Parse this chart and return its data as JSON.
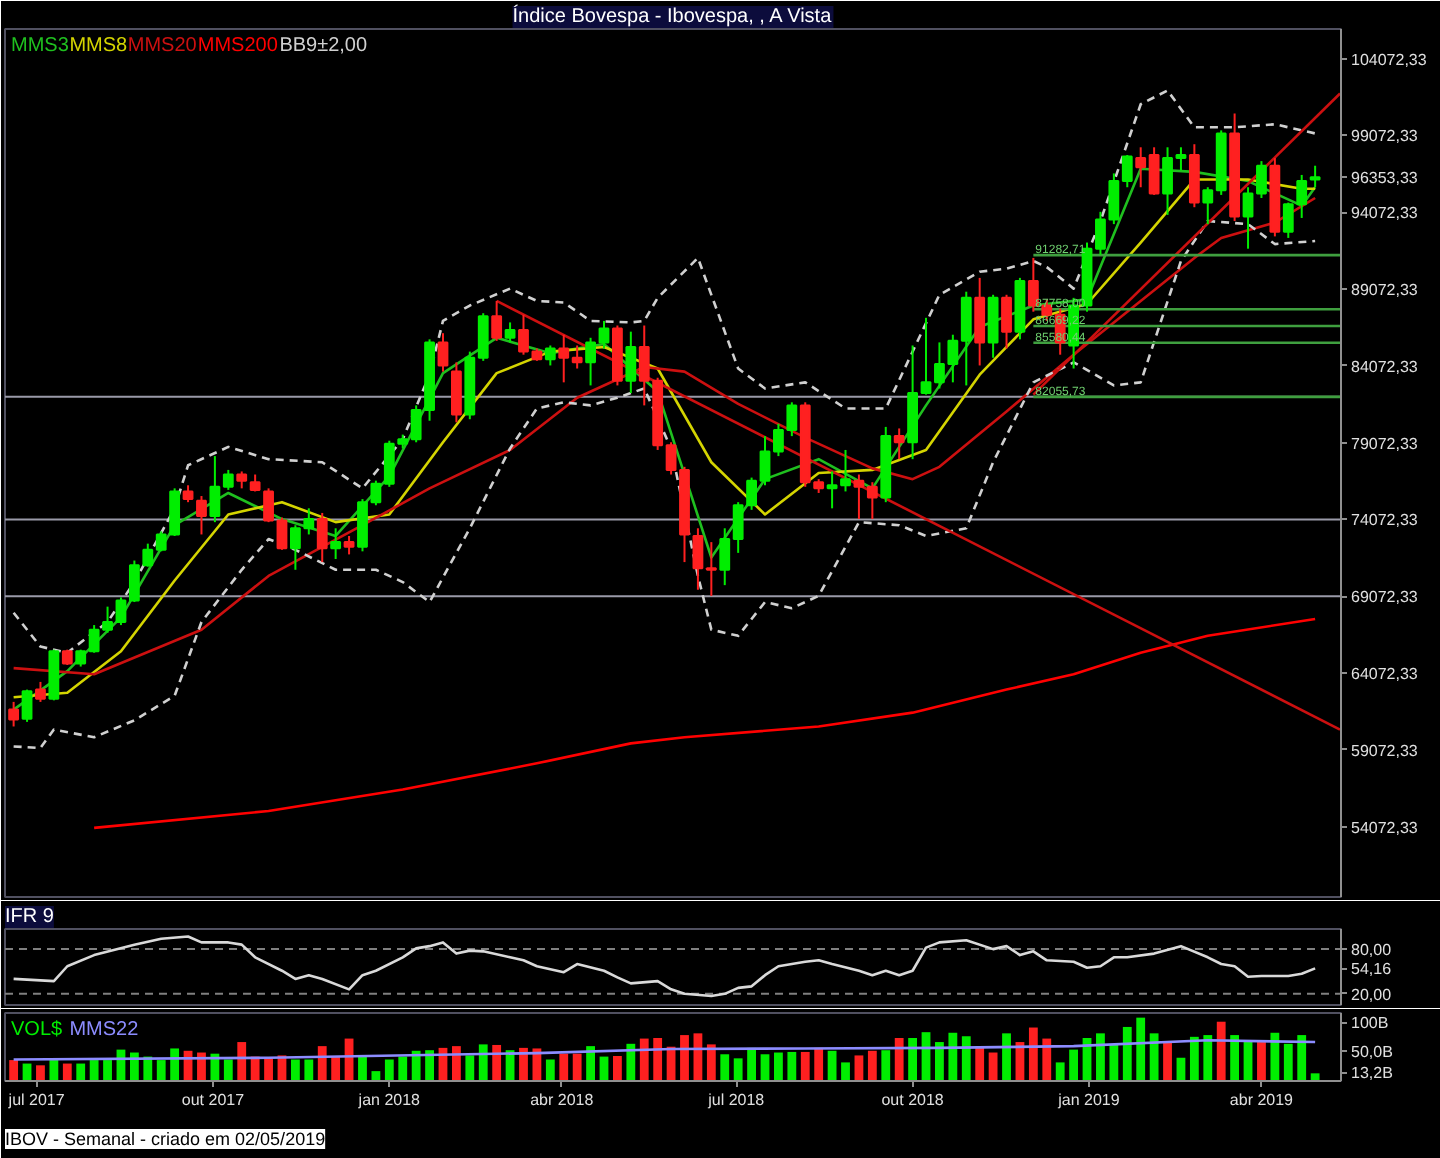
{
  "chart_data": [
    {
      "type": "candlestick",
      "title": "Índice Bovespa - Ibovespa, , A Vista",
      "legend": "top left",
      "tick_labels": "y",
      "xlim": [
        "2017-06-14T12:00",
        "2019-05-12T12:00"
      ],
      "ylim": [
        49500,
        106000
      ],
      "yticks": [
        {
          "value": 104072.33,
          "label": "104072,33"
        },
        {
          "value": 99072.33,
          "label": "99072,33"
        },
        {
          "value": 96353.33,
          "label": "96353,33"
        },
        {
          "value": 94072.33,
          "label": "94072,33"
        },
        {
          "value": 89072.33,
          "label": "89072,33"
        },
        {
          "value": 84072.33,
          "label": "84072,33"
        },
        {
          "value": 79072.33,
          "label": "79072,33"
        },
        {
          "value": 74072.33,
          "label": "74072,33"
        },
        {
          "value": 69072.33,
          "label": "69072,33"
        },
        {
          "value": 64072.33,
          "label": "64072,33"
        },
        {
          "value": 59072.33,
          "label": "59072,33"
        },
        {
          "value": 54072.33,
          "label": "54072,33"
        }
      ],
      "x": [
        "2017-06-19",
        "2017-06-26",
        "2017-07-03",
        "2017-07-10",
        "2017-07-17",
        "2017-07-24",
        "2017-07-31",
        "2017-08-07",
        "2017-08-14",
        "2017-08-21",
        "2017-08-28",
        "2017-09-04",
        "2017-09-11",
        "2017-09-18",
        "2017-09-25",
        "2017-10-02",
        "2017-10-09",
        "2017-10-16",
        "2017-10-23",
        "2017-10-30",
        "2017-11-06",
        "2017-11-13",
        "2017-11-20",
        "2017-11-27",
        "2017-12-04",
        "2017-12-11",
        "2017-12-18",
        "2017-12-25",
        "2018-01-01",
        "2018-01-08",
        "2018-01-15",
        "2018-01-22",
        "2018-01-29",
        "2018-02-05",
        "2018-02-12",
        "2018-02-19",
        "2018-02-26",
        "2018-03-05",
        "2018-03-12",
        "2018-03-19",
        "2018-03-26",
        "2018-04-02",
        "2018-04-09",
        "2018-04-16",
        "2018-04-23",
        "2018-04-30",
        "2018-05-07",
        "2018-05-14",
        "2018-05-21",
        "2018-05-28",
        "2018-06-04",
        "2018-06-11",
        "2018-06-18",
        "2018-06-25",
        "2018-07-02",
        "2018-07-09",
        "2018-07-16",
        "2018-07-23",
        "2018-07-30",
        "2018-08-06",
        "2018-08-13",
        "2018-08-20",
        "2018-08-27",
        "2018-09-03",
        "2018-09-10",
        "2018-09-17",
        "2018-09-24",
        "2018-10-01",
        "2018-10-08",
        "2018-10-15",
        "2018-10-22",
        "2018-10-29",
        "2018-11-05",
        "2018-11-12",
        "2018-11-19",
        "2018-11-26",
        "2018-12-03",
        "2018-12-10",
        "2018-12-17",
        "2018-12-24",
        "2018-12-31",
        "2019-01-07",
        "2019-01-14",
        "2019-01-21",
        "2019-01-28",
        "2019-02-04",
        "2019-02-11",
        "2019-02-18",
        "2019-02-25",
        "2019-03-04",
        "2019-03-11",
        "2019-03-18",
        "2019-03-25",
        "2019-04-01",
        "2019-04-08",
        "2019-04-15",
        "2019-04-22",
        "2019-04-29"
      ],
      "ohlc": [
        [
          61700,
          62200,
          60600,
          61050
        ],
        [
          61100,
          63000,
          60900,
          62900
        ],
        [
          63000,
          63500,
          62200,
          62400
        ],
        [
          62400,
          65600,
          62300,
          65500
        ],
        [
          65500,
          65600,
          64600,
          64700
        ],
        [
          64700,
          65600,
          64500,
          65500
        ],
        [
          65500,
          67200,
          65400,
          66900
        ],
        [
          66900,
          68400,
          66700,
          67400
        ],
        [
          67400,
          69000,
          67200,
          68800
        ],
        [
          68800,
          71400,
          68700,
          71100
        ],
        [
          71100,
          72500,
          71000,
          72100
        ],
        [
          72100,
          73300,
          72000,
          73100
        ],
        [
          73100,
          76100,
          73000,
          75900
        ],
        [
          75900,
          76300,
          75200,
          75400
        ],
        [
          75300,
          75600,
          73100,
          74300
        ],
        [
          74300,
          78200,
          73900,
          76200
        ],
        [
          76200,
          77300,
          76000,
          77000
        ],
        [
          77000,
          77200,
          76100,
          76600
        ],
        [
          76500,
          77000,
          75900,
          76000
        ],
        [
          75900,
          76100,
          73900,
          74000
        ],
        [
          74000,
          74200,
          72100,
          72200
        ],
        [
          72200,
          73700,
          70800,
          73500
        ],
        [
          73500,
          74800,
          73100,
          74100
        ],
        [
          74100,
          74500,
          71300,
          72200
        ],
        [
          72200,
          73500,
          71500,
          72600
        ],
        [
          72600,
          73000,
          71800,
          72300
        ],
        [
          72300,
          75400,
          72000,
          75200
        ],
        [
          75200,
          76600,
          75000,
          76400
        ],
        [
          76400,
          79200,
          76200,
          79000
        ],
        [
          79000,
          79600,
          78700,
          79300
        ],
        [
          79300,
          81500,
          79100,
          81200
        ],
        [
          81200,
          85800,
          80500,
          85600
        ],
        [
          85600,
          86200,
          83700,
          84100
        ],
        [
          83700,
          84300,
          80400,
          80900
        ],
        [
          80900,
          85000,
          80600,
          84600
        ],
        [
          84600,
          87500,
          84400,
          87300
        ],
        [
          87300,
          88300,
          85700,
          85900
        ],
        [
          85900,
          86900,
          85600,
          86400
        ],
        [
          86400,
          87400,
          84800,
          85000
        ],
        [
          85000,
          85200,
          84400,
          84500
        ],
        [
          84500,
          85400,
          84100,
          85200
        ],
        [
          85200,
          86100,
          83000,
          84600
        ],
        [
          84600,
          85400,
          83900,
          84300
        ],
        [
          84300,
          85900,
          82800,
          85600
        ],
        [
          85600,
          87000,
          85200,
          86500
        ],
        [
          86500,
          86700,
          82800,
          83100
        ],
        [
          83100,
          86300,
          82300,
          85300
        ],
        [
          85300,
          86700,
          81500,
          83100
        ],
        [
          83100,
          83300,
          78600,
          78900
        ],
        [
          78900,
          79100,
          77000,
          77300
        ],
        [
          77300,
          77500,
          71300,
          73100
        ],
        [
          73000,
          73500,
          69500,
          70900
        ],
        [
          70900,
          72600,
          69100,
          70800
        ],
        [
          70800,
          73500,
          69800,
          72800
        ],
        [
          72800,
          75200,
          71900,
          75000
        ],
        [
          75000,
          76800,
          74700,
          76600
        ],
        [
          76600,
          79500,
          76300,
          78500
        ],
        [
          78500,
          80300,
          78200,
          79900
        ],
        [
          79900,
          81700,
          79500,
          81500
        ],
        [
          81500,
          81700,
          76200,
          76500
        ],
        [
          76500,
          76700,
          75800,
          76100
        ],
        [
          76100,
          77200,
          74800,
          76300
        ],
        [
          76300,
          78600,
          75900,
          76700
        ],
        [
          76600,
          77000,
          74100,
          76200
        ],
        [
          76200,
          76500,
          74100,
          75500
        ],
        [
          75500,
          80100,
          75200,
          79500
        ],
        [
          79500,
          80000,
          78000,
          79100
        ],
        [
          79100,
          85400,
          78000,
          82300
        ],
        [
          82300,
          87200,
          82200,
          83000
        ],
        [
          83000,
          85600,
          82600,
          84200
        ],
        [
          84200,
          86100,
          83000,
          85700
        ],
        [
          85700,
          88900,
          82800,
          88500
        ],
        [
          88500,
          89800,
          84100,
          85600
        ],
        [
          85600,
          88700,
          84600,
          88500
        ],
        [
          88500,
          88700,
          85200,
          86300
        ],
        [
          86300,
          89800,
          85800,
          89600
        ],
        [
          89600,
          91100,
          87600,
          88000
        ],
        [
          88000,
          88400,
          87000,
          87400
        ],
        [
          87400,
          87800,
          84800,
          85600
        ],
        [
          85400,
          88500,
          83900,
          88000
        ],
        [
          88000,
          92100,
          87600,
          91700
        ],
        [
          91700,
          94100,
          91300,
          93600
        ],
        [
          93600,
          96600,
          93300,
          96100
        ],
        [
          96100,
          97800,
          95700,
          97700
        ],
        [
          97600,
          98300,
          95700,
          97000
        ],
        [
          97800,
          98300,
          95200,
          95300
        ],
        [
          95300,
          98300,
          93900,
          97600
        ],
        [
          97600,
          98300,
          96800,
          97800
        ],
        [
          97800,
          98500,
          94400,
          94700
        ],
        [
          94700,
          95700,
          93300,
          95500
        ],
        [
          95500,
          99400,
          95200,
          99200
        ],
        [
          99200,
          100500,
          93500,
          93800
        ],
        [
          93800,
          95700,
          91700,
          95300
        ],
        [
          95300,
          97400,
          95000,
          97100
        ],
        [
          97100,
          97600,
          92500,
          92800
        ],
        [
          92800,
          94700,
          92400,
          94600
        ],
        [
          94600,
          96500,
          93700,
          96100
        ],
        [
          96200,
          97100,
          95700,
          96353.33
        ]
      ],
      "series": [
        {
          "name": "MMS3",
          "type": "line",
          "color": "#1fbf1f",
          "x": [
            "2017-06-19",
            "2017-07-17",
            "2017-08-14",
            "2017-09-11",
            "2017-10-09",
            "2017-11-06",
            "2017-12-04",
            "2018-01-01",
            "2018-01-29",
            "2018-02-26",
            "2018-03-26",
            "2018-04-23",
            "2018-05-21",
            "2018-06-18",
            "2018-07-16",
            "2018-08-13",
            "2018-09-10",
            "2018-10-08",
            "2018-11-05",
            "2018-12-03",
            "2018-12-31",
            "2019-01-28",
            "2019-02-25",
            "2019-03-25",
            "2019-04-22",
            "2019-04-29"
          ],
          "values": [
            61700,
            64200,
            67700,
            73700,
            75800,
            74100,
            73000,
            76900,
            83600,
            85900,
            84900,
            85500,
            82400,
            71600,
            76700,
            78000,
            76100,
            81500,
            86600,
            88000,
            88400,
            96900,
            96700,
            96100,
            94500,
            95700
          ]
        },
        {
          "name": "MMS8",
          "type": "line",
          "color": "#d4d400",
          "x": [
            "2017-06-19",
            "2017-07-17",
            "2017-08-14",
            "2017-09-11",
            "2017-10-09",
            "2017-11-06",
            "2017-12-04",
            "2018-01-01",
            "2018-01-29",
            "2018-02-26",
            "2018-03-26",
            "2018-04-23",
            "2018-05-21",
            "2018-06-18",
            "2018-07-16",
            "2018-08-13",
            "2018-09-10",
            "2018-10-08",
            "2018-11-05",
            "2018-12-03",
            "2018-12-31",
            "2019-01-28",
            "2019-02-25",
            "2019-03-25",
            "2019-04-22",
            "2019-04-29"
          ],
          "values": [
            62500,
            62800,
            65500,
            70100,
            74400,
            75200,
            73900,
            74400,
            79100,
            83600,
            85000,
            85300,
            83900,
            77800,
            74400,
            77100,
            77300,
            78600,
            83500,
            87100,
            88100,
            92100,
            96200,
            96200,
            95600,
            95600
          ]
        },
        {
          "name": "MMS20",
          "type": "line",
          "color": "#cc1010",
          "x": [
            "2017-06-19",
            "2017-07-31",
            "2017-09-25",
            "2017-10-30",
            "2017-12-18",
            "2018-01-22",
            "2018-03-05",
            "2018-04-09",
            "2018-05-14",
            "2018-06-04",
            "2018-07-02",
            "2018-08-06",
            "2018-09-10",
            "2018-10-01",
            "2018-10-15",
            "2018-11-19",
            "2018-12-24",
            "2019-01-28",
            "2019-02-25",
            "2019-03-11",
            "2019-04-08",
            "2019-04-29"
          ],
          "values": [
            64400,
            64000,
            66900,
            70400,
            73700,
            76100,
            78600,
            82000,
            84000,
            83700,
            81600,
            79400,
            77400,
            76700,
            77500,
            81100,
            84800,
            88300,
            91100,
            92400,
            93400,
            95000
          ]
        },
        {
          "name": "MMS200",
          "type": "line",
          "color": "#ff0000",
          "x": [
            "2017-07-31",
            "2017-10-30",
            "2018-01-08",
            "2018-03-19",
            "2018-05-07",
            "2018-06-04",
            "2018-08-13",
            "2018-10-01",
            "2018-11-19",
            "2018-12-24",
            "2019-01-28",
            "2019-03-04",
            "2019-04-29"
          ],
          "values": [
            54000,
            55100,
            56500,
            58200,
            59500,
            59900,
            60600,
            61500,
            63000,
            64000,
            65400,
            66500,
            67600
          ]
        },
        {
          "name": "BB9±2,00",
          "type": "line",
          "color": "#d0d0d0",
          "line_style": "dashed",
          "x": [
            "2017-06-19",
            "2017-07-03",
            "2017-07-17",
            "2017-08-07",
            "2017-08-21",
            "2017-09-11",
            "2017-09-18",
            "2017-10-09",
            "2017-10-30",
            "2017-11-27",
            "2017-12-18",
            "2018-01-08",
            "2018-01-22",
            "2018-01-29",
            "2018-02-12",
            "2018-03-05",
            "2018-03-19",
            "2018-04-02",
            "2018-04-16",
            "2018-05-07",
            "2018-05-14",
            "2018-05-21",
            "2018-06-11",
            "2018-07-02",
            "2018-07-16",
            "2018-08-06",
            "2018-08-27",
            "2018-09-17",
            "2018-10-15",
            "2018-11-05",
            "2018-11-19",
            "2018-12-03",
            "2018-12-10",
            "2018-12-24",
            "2019-01-07",
            "2019-01-28",
            "2019-02-11",
            "2019-02-25",
            "2019-03-18",
            "2019-04-08",
            "2019-04-29"
          ],
          "values": [
            68000,
            65800,
            65400,
            67400,
            70000,
            74800,
            77600,
            78800,
            78000,
            77800,
            76100,
            79300,
            83500,
            87000,
            88000,
            89100,
            88300,
            88200,
            87000,
            86900,
            87000,
            88500,
            91100,
            83900,
            82600,
            83000,
            81300,
            81300,
            88700,
            90200,
            90400,
            90900,
            90500,
            89100,
            93500,
            101100,
            102000,
            99600,
            99600,
            99800,
            99200
          ]
        },
        {
          "type": "line",
          "color": "#d0d0d0",
          "line_style": "dashed",
          "x": [
            "2017-06-19",
            "2017-07-03",
            "2017-07-10",
            "2017-07-31",
            "2017-08-21",
            "2017-09-11",
            "2017-09-25",
            "2017-10-16",
            "2017-10-30",
            "2017-11-13",
            "2017-12-04",
            "2017-12-25",
            "2018-01-08",
            "2018-01-22",
            "2018-02-12",
            "2018-03-05",
            "2018-03-19",
            "2018-04-02",
            "2018-04-16",
            "2018-04-30",
            "2018-05-14",
            "2018-05-28",
            "2018-06-11",
            "2018-06-18",
            "2018-07-02",
            "2018-07-16",
            "2018-07-30",
            "2018-08-13",
            "2018-09-03",
            "2018-09-24",
            "2018-10-08",
            "2018-10-29",
            "2018-11-12",
            "2018-12-03",
            "2018-12-24",
            "2019-01-14",
            "2019-01-28",
            "2019-02-18",
            "2019-03-04",
            "2019-03-25",
            "2019-04-08",
            "2019-04-29"
          ],
          "values": [
            59300,
            59200,
            60400,
            59900,
            61000,
            62600,
            67400,
            70800,
            72800,
            72100,
            70800,
            70800,
            70000,
            68700,
            73500,
            78700,
            81300,
            81700,
            81500,
            82000,
            82600,
            78700,
            70400,
            66900,
            66500,
            68700,
            68300,
            69100,
            73900,
            73700,
            73000,
            73500,
            77800,
            83000,
            84300,
            82800,
            83000,
            90900,
            93500,
            93300,
            92000,
            92200
          ]
        },
        {
          "type": "line",
          "color": "#cc1010",
          "x": [
            "2018-02-26",
            "2019-05-12"
          ],
          "values": [
            88300,
            60400
          ]
        },
        {
          "type": "line",
          "color": "#cc1010",
          "x": [
            "2018-12-03",
            "2019-05-12"
          ],
          "values": [
            82200,
            101800
          ]
        },
        {
          "type": "line",
          "color": "#3f9f3f",
          "x": [
            "2018-12-03",
            "2019-05-12"
          ],
          "values": [
            91282.71,
            91282.71
          ]
        },
        {
          "type": "line",
          "color": "#3f9f3f",
          "x": [
            "2018-12-03",
            "2019-05-12"
          ],
          "values": [
            87758.0,
            87758.0
          ]
        },
        {
          "type": "line",
          "color": "#3f9f3f",
          "x": [
            "2018-12-03",
            "2019-05-12"
          ],
          "values": [
            86669.22,
            86669.22
          ]
        },
        {
          "type": "line",
          "color": "#3f9f3f",
          "x": [
            "2018-12-03",
            "2019-05-12"
          ],
          "values": [
            85580.44,
            85580.44
          ]
        },
        {
          "type": "line",
          "color": "#3f9f3f",
          "x": [
            "2018-12-03",
            "2019-05-12"
          ],
          "values": [
            82055.73,
            82055.73
          ]
        }
      ],
      "ref_lines": [
        {
          "axis": "y",
          "value": 82055.73,
          "color": "#9a9aa8"
        },
        {
          "axis": "y",
          "value": 74072.33,
          "color": "#9a9aa8"
        },
        {
          "axis": "y",
          "value": 69072.33,
          "color": "#9a9aa8"
        }
      ],
      "annotations": [
        {
          "text": "91282,71",
          "x": "2018-12-03",
          "y": 91282.71
        },
        {
          "text": "87758,00",
          "x": "2018-12-03",
          "y": 87758.0
        },
        {
          "text": "86669,22",
          "x": "2018-12-03",
          "y": 86669.22
        },
        {
          "text": "85580,44",
          "x": "2018-12-03",
          "y": 85580.44
        },
        {
          "text": "82055,73",
          "x": "2018-12-03",
          "y": 82055.73
        }
      ]
    },
    {
      "type": "line",
      "title": "IFR 9",
      "xlim": [
        "2017-06-14T12:00",
        "2019-05-12T12:00"
      ],
      "ylim": [
        5,
        107
      ],
      "yticks": [
        {
          "value": 80,
          "label": "80,00"
        },
        {
          "value": 54.16,
          "label": "54,16"
        },
        {
          "value": 20,
          "label": "20,00"
        }
      ],
      "ref_lines": [
        {
          "axis": "y",
          "value": 80,
          "color": "#808080",
          "line_style": "dashed"
        },
        {
          "axis": "y",
          "value": 20,
          "color": "#808080",
          "line_style": "dashed"
        }
      ],
      "series": [
        {
          "color": "#d9d9d9",
          "x": [
            "2017-06-19",
            "2017-07-10",
            "2017-07-17",
            "2017-07-31",
            "2017-08-21",
            "2017-09-04",
            "2017-09-18",
            "2017-09-25",
            "2017-10-09",
            "2017-10-16",
            "2017-10-23",
            "2017-11-06",
            "2017-11-13",
            "2017-11-20",
            "2017-11-27",
            "2017-12-11",
            "2017-12-18",
            "2017-12-25",
            "2018-01-08",
            "2018-01-15",
            "2018-01-22",
            "2018-01-29",
            "2018-02-05",
            "2018-02-12",
            "2018-02-19",
            "2018-03-05",
            "2018-03-12",
            "2018-03-19",
            "2018-04-02",
            "2018-04-09",
            "2018-04-23",
            "2018-04-30",
            "2018-05-07",
            "2018-05-21",
            "2018-05-28",
            "2018-06-04",
            "2018-06-18",
            "2018-06-25",
            "2018-07-02",
            "2018-07-09",
            "2018-07-16",
            "2018-07-23",
            "2018-08-06",
            "2018-08-13",
            "2018-08-20",
            "2018-09-03",
            "2018-09-10",
            "2018-09-17",
            "2018-09-24",
            "2018-10-01",
            "2018-10-08",
            "2018-10-15",
            "2018-10-29",
            "2018-11-12",
            "2018-11-19",
            "2018-11-26",
            "2018-12-03",
            "2018-12-10",
            "2018-12-24",
            "2018-12-31",
            "2019-01-07",
            "2019-01-14",
            "2019-01-21",
            "2019-02-04",
            "2019-02-18",
            "2019-03-04",
            "2019-03-11",
            "2019-03-18",
            "2019-03-25",
            "2019-04-01",
            "2019-04-15",
            "2019-04-22",
            "2019-04-29"
          ],
          "values": [
            40,
            37,
            57,
            72,
            86,
            94,
            97,
            89,
            89,
            86,
            69,
            51,
            40,
            45,
            40,
            26,
            45,
            51,
            69,
            81,
            84,
            89,
            74,
            78,
            77,
            69,
            65,
            57,
            49,
            60,
            51,
            42,
            34,
            37,
            26,
            20,
            17,
            20,
            28,
            30,
            45,
            57,
            63,
            65,
            60,
            51,
            45,
            51,
            45,
            51,
            82,
            89,
            92,
            80,
            84,
            72,
            77,
            65,
            63,
            55,
            57,
            69,
            69,
            74,
            84,
            69,
            60,
            57,
            43,
            44,
            44,
            47,
            54.16
          ]
        }
      ],
      "tick_labels": "y"
    },
    {
      "type": "bar",
      "legend": "top left",
      "xlim": [
        "2017-06-14T12:00",
        "2019-05-12T12:00"
      ],
      "ylim": [
        0,
        117
      ],
      "xticks": [
        {
          "value": "2017-07-01",
          "label": "jul 2017"
        },
        {
          "value": "2017-10-01",
          "label": "out 2017"
        },
        {
          "value": "2018-01-01",
          "label": "jan 2018"
        },
        {
          "value": "2018-04-01",
          "label": "abr 2018"
        },
        {
          "value": "2018-07-01",
          "label": "jul 2018"
        },
        {
          "value": "2018-10-01",
          "label": "out 2018"
        },
        {
          "value": "2019-01-01",
          "label": "jan 2019"
        },
        {
          "value": "2019-04-01",
          "label": "abr 2019"
        }
      ],
      "yticks": [
        {
          "value": 100,
          "label": "100B"
        },
        {
          "value": 50,
          "label": "50,0B"
        },
        {
          "value": 13.2,
          "label": "13,2B"
        }
      ],
      "x": [
        "2017-06-19",
        "2017-06-26",
        "2017-07-03",
        "2017-07-10",
        "2017-07-17",
        "2017-07-24",
        "2017-07-31",
        "2017-08-07",
        "2017-08-14",
        "2017-08-21",
        "2017-08-28",
        "2017-09-04",
        "2017-09-11",
        "2017-09-18",
        "2017-09-25",
        "2017-10-02",
        "2017-10-09",
        "2017-10-16",
        "2017-10-23",
        "2017-10-30",
        "2017-11-06",
        "2017-11-13",
        "2017-11-20",
        "2017-11-27",
        "2017-12-04",
        "2017-12-11",
        "2017-12-18",
        "2017-12-25",
        "2018-01-01",
        "2018-01-08",
        "2018-01-15",
        "2018-01-22",
        "2018-01-29",
        "2018-02-05",
        "2018-02-12",
        "2018-02-19",
        "2018-02-26",
        "2018-03-05",
        "2018-03-12",
        "2018-03-19",
        "2018-03-26",
        "2018-04-02",
        "2018-04-09",
        "2018-04-16",
        "2018-04-23",
        "2018-04-30",
        "2018-05-07",
        "2018-05-14",
        "2018-05-21",
        "2018-05-28",
        "2018-06-04",
        "2018-06-11",
        "2018-06-18",
        "2018-06-25",
        "2018-07-02",
        "2018-07-09",
        "2018-07-16",
        "2018-07-23",
        "2018-07-30",
        "2018-08-06",
        "2018-08-13",
        "2018-08-20",
        "2018-08-27",
        "2018-09-03",
        "2018-09-10",
        "2018-09-17",
        "2018-09-24",
        "2018-10-01",
        "2018-10-08",
        "2018-10-15",
        "2018-10-22",
        "2018-10-29",
        "2018-11-05",
        "2018-11-12",
        "2018-11-19",
        "2018-11-26",
        "2018-12-03",
        "2018-12-10",
        "2018-12-17",
        "2018-12-24",
        "2018-12-31",
        "2019-01-07",
        "2019-01-14",
        "2019-01-21",
        "2019-01-28",
        "2019-02-04",
        "2019-02-11",
        "2019-02-18",
        "2019-02-25",
        "2019-03-04",
        "2019-03-11",
        "2019-03-18",
        "2019-03-25",
        "2019-04-01",
        "2019-04-08",
        "2019-04-15",
        "2019-04-22",
        "2019-04-29"
      ],
      "series": [
        {
          "name": "VOL$",
          "color": "#00ee00",
          "colors": [
            "#ff2020",
            "#00ee00",
            "#ff2020",
            "#00ee00",
            "#ff2020",
            "#00ee00",
            "#00ee00",
            "#00ee00",
            "#00ee00",
            "#00ee00",
            "#00ee00",
            "#00ee00",
            "#00ee00",
            "#ff2020",
            "#ff2020",
            "#00ee00",
            "#00ee00",
            "#ff2020",
            "#ff2020",
            "#ff2020",
            "#ff2020",
            "#00ee00",
            "#00ee00",
            "#ff2020",
            "#ff2020",
            "#ff2020",
            "#00ee00",
            "#00ee00",
            "#00ee00",
            "#00ee00",
            "#00ee00",
            "#00ee00",
            "#ff2020",
            "#ff2020",
            "#00ee00",
            "#00ee00",
            "#ff2020",
            "#00ee00",
            "#ff2020",
            "#ff2020",
            "#00ee00",
            "#ff2020",
            "#ff2020",
            "#00ee00",
            "#00ee00",
            "#ff2020",
            "#00ee00",
            "#ff2020",
            "#ff2020",
            "#ff2020",
            "#ff2020",
            "#ff2020",
            "#ff2020",
            "#00ee00",
            "#00ee00",
            "#00ee00",
            "#00ee00",
            "#00ee00",
            "#00ee00",
            "#ff2020",
            "#ff2020",
            "#00ee00",
            "#00ee00",
            "#ff2020",
            "#ff2020",
            "#00ee00",
            "#ff2020",
            "#00ee00",
            "#00ee00",
            "#00ee00",
            "#00ee00",
            "#00ee00",
            "#ff2020",
            "#ff2020",
            "#00ee00",
            "#ff2020",
            "#ff2020",
            "#ff2020",
            "#00ee00",
            "#00ee00",
            "#00ee00",
            "#00ee00",
            "#00ee00",
            "#00ee00",
            "#00ee00",
            "#00ee00",
            "#ff2020",
            "#00ee00",
            "#00ee00",
            "#00ee00",
            "#ff2020",
            "#00ee00",
            "#00ee00",
            "#ff2020",
            "#00ee00",
            "#00ee00",
            "#00ee00",
            "#00ee00"
          ],
          "values": [
            36,
            30,
            27,
            36,
            30,
            30,
            36,
            36,
            54,
            49,
            42,
            36,
            56,
            52,
            49,
            47,
            37,
            67,
            42,
            39,
            44,
            37,
            37,
            60,
            43,
            73,
            44,
            17,
            37,
            42,
            52,
            53,
            57,
            60,
            44,
            63,
            62,
            53,
            57,
            56,
            37,
            47,
            47,
            60,
            42,
            43,
            64,
            73,
            74,
            59,
            79,
            82,
            63,
            46,
            39,
            57,
            46,
            49,
            50,
            50,
            57,
            52,
            32,
            44,
            52,
            53,
            74,
            74,
            84,
            67,
            83,
            77,
            60,
            49,
            82,
            67,
            92,
            73,
            32,
            54,
            74,
            82,
            62,
            93,
            109,
            82,
            67,
            40,
            76,
            79,
            102,
            79,
            69,
            67,
            83,
            64,
            79,
            13.2
          ]
        },
        {
          "name": "MMS22",
          "type": "line",
          "color": "#8c8cff",
          "x": [
            "2017-06-19",
            "2017-10-30",
            "2018-03-19",
            "2018-05-28",
            "2018-08-06",
            "2018-10-15",
            "2018-12-24",
            "2019-03-04",
            "2019-04-29"
          ],
          "values": [
            37,
            40,
            48,
            55,
            56,
            57,
            60,
            70,
            67
          ]
        }
      ],
      "annotations": [
        "IBOV - Semanal - criado em 02/05/2019"
      ]
    }
  ]
}
